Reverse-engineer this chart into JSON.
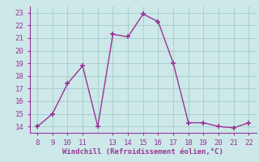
{
  "x": [
    8,
    9,
    10,
    11,
    12,
    13,
    14,
    15,
    16,
    17,
    18,
    19,
    20,
    21,
    22
  ],
  "y": [
    14,
    15,
    17.4,
    18.8,
    14,
    21.3,
    21.1,
    22.9,
    22.3,
    19.0,
    14.3,
    14.3,
    14.0,
    13.9,
    14.3
  ],
  "x_ticks": [
    8,
    9,
    10,
    11,
    13,
    14,
    15,
    16,
    17,
    18,
    19,
    20,
    21,
    22
  ],
  "xlim": [
    7.5,
    22.5
  ],
  "ylim": [
    13.5,
    23.5
  ],
  "yticks": [
    14,
    15,
    16,
    17,
    18,
    19,
    20,
    21,
    22,
    23
  ],
  "xlabel": "Windchill (Refroidissement éolien,°C)",
  "line_color": "#993399",
  "bg_color": "#cce8e8",
  "grid_color": "#aacece",
  "marker": "+",
  "linewidth": 1.0,
  "marker_size": 5,
  "tick_fontsize": 6.5,
  "xlabel_fontsize": 6.5
}
